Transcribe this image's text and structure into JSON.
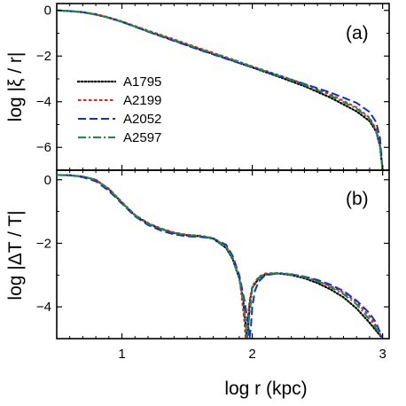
{
  "chart_data": [
    {
      "type": "line",
      "panel_label": "(a)",
      "ylabel": "log |ξ / r|",
      "xlim": [
        0.5,
        3.05
      ],
      "ylim": [
        -7,
        0.3
      ],
      "yticks": [
        0,
        -2,
        -4,
        -6
      ],
      "legend_position": "left-center",
      "series": [
        {
          "name": "A1795",
          "color": "#000000",
          "style": "dotted",
          "x": [
            0.5,
            0.6,
            0.7,
            0.8,
            0.9,
            1.0,
            1.2,
            1.4,
            1.6,
            1.8,
            2.0,
            2.2,
            2.4,
            2.6,
            2.8,
            2.9,
            2.95,
            2.98,
            3.0
          ],
          "y": [
            0,
            -0.03,
            -0.08,
            -0.18,
            -0.32,
            -0.5,
            -0.92,
            -1.32,
            -1.72,
            -2.1,
            -2.5,
            -2.9,
            -3.32,
            -3.82,
            -4.42,
            -4.85,
            -5.3,
            -5.95,
            -7.0
          ]
        },
        {
          "name": "A2199",
          "color": "#e02020",
          "style": "dashed-fine",
          "x": [
            0.5,
            0.6,
            0.7,
            0.8,
            0.9,
            1.0,
            1.2,
            1.4,
            1.6,
            1.8,
            2.0,
            2.2,
            2.4,
            2.6,
            2.8,
            2.9,
            2.95,
            2.98,
            3.0
          ],
          "y": [
            0,
            -0.03,
            -0.07,
            -0.16,
            -0.3,
            -0.48,
            -0.88,
            -1.27,
            -1.67,
            -2.05,
            -2.45,
            -2.83,
            -3.22,
            -3.68,
            -4.25,
            -4.7,
            -5.2,
            -5.9,
            -7.0
          ]
        },
        {
          "name": "A2052",
          "color": "#1030d0",
          "style": "dashed",
          "x": [
            0.5,
            0.6,
            0.7,
            0.8,
            0.9,
            1.0,
            1.2,
            1.4,
            1.6,
            1.8,
            2.0,
            2.2,
            2.4,
            2.6,
            2.8,
            2.9,
            2.95,
            2.98,
            3.0
          ],
          "y": [
            0,
            -0.03,
            -0.08,
            -0.18,
            -0.32,
            -0.5,
            -0.93,
            -1.34,
            -1.74,
            -2.12,
            -2.5,
            -2.86,
            -3.22,
            -3.6,
            -4.05,
            -4.45,
            -4.9,
            -5.6,
            -7.0
          ]
        },
        {
          "name": "A2597",
          "color": "#1a8a4a",
          "style": "dashdot",
          "x": [
            0.5,
            0.6,
            0.7,
            0.8,
            0.9,
            1.0,
            1.2,
            1.4,
            1.6,
            1.8,
            2.0,
            2.2,
            2.4,
            2.6,
            2.8,
            2.9,
            2.95,
            2.98,
            3.0
          ],
          "y": [
            0,
            -0.03,
            -0.08,
            -0.18,
            -0.32,
            -0.5,
            -0.91,
            -1.3,
            -1.7,
            -2.07,
            -2.47,
            -2.86,
            -3.26,
            -3.73,
            -4.3,
            -4.75,
            -5.25,
            -5.95,
            -7.0
          ]
        }
      ]
    },
    {
      "type": "line",
      "panel_label": "(b)",
      "ylabel": "log |ΔT / T|",
      "xlabel": "log r (kpc)",
      "xlim": [
        0.5,
        3.05
      ],
      "ylim": [
        -5,
        0.3
      ],
      "xticks": [
        1,
        2,
        3
      ],
      "yticks": [
        0,
        -2,
        -4
      ],
      "series": [
        {
          "name": "A1795",
          "color": "#000000",
          "style": "dotted",
          "x": [
            0.5,
            0.6,
            0.7,
            0.8,
            0.9,
            1.0,
            1.1,
            1.2,
            1.3,
            1.4,
            1.5,
            1.6,
            1.7,
            1.8,
            1.85,
            1.9,
            1.93,
            1.95,
            1.96,
            1.97,
            1.98,
            2.0,
            2.05,
            2.1,
            2.2,
            2.3,
            2.4,
            2.5,
            2.6,
            2.7,
            2.8,
            2.9,
            2.95,
            3.0
          ],
          "y": [
            0.15,
            0.14,
            0.1,
            0.0,
            -0.3,
            -0.72,
            -1.12,
            -1.38,
            -1.55,
            -1.68,
            -1.75,
            -1.78,
            -1.85,
            -2.15,
            -2.5,
            -3.1,
            -3.8,
            -4.6,
            -5.0,
            -4.6,
            -3.9,
            -3.4,
            -3.1,
            -2.98,
            -2.95,
            -3.0,
            -3.1,
            -3.25,
            -3.45,
            -3.7,
            -4.05,
            -4.5,
            -4.75,
            -5.0
          ]
        },
        {
          "name": "A2199",
          "color": "#e02020",
          "style": "dashed-fine",
          "x": [
            0.5,
            0.6,
            0.7,
            0.8,
            0.9,
            1.0,
            1.1,
            1.2,
            1.3,
            1.4,
            1.5,
            1.6,
            1.7,
            1.8,
            1.85,
            1.9,
            1.92,
            1.94,
            1.95,
            1.96,
            1.98,
            2.0,
            2.05,
            2.1,
            2.2,
            2.3,
            2.4,
            2.5,
            2.6,
            2.7,
            2.8,
            2.9,
            2.95,
            3.0
          ],
          "y": [
            0.15,
            0.14,
            0.1,
            0.0,
            -0.28,
            -0.7,
            -1.1,
            -1.36,
            -1.53,
            -1.66,
            -1.73,
            -1.76,
            -1.83,
            -2.1,
            -2.45,
            -3.05,
            -3.7,
            -4.5,
            -5.0,
            -4.5,
            -3.8,
            -3.35,
            -3.05,
            -2.95,
            -2.93,
            -2.97,
            -3.05,
            -3.18,
            -3.35,
            -3.55,
            -3.85,
            -4.3,
            -4.6,
            -5.0
          ]
        },
        {
          "name": "A2052",
          "color": "#1030d0",
          "style": "dashed",
          "x": [
            0.5,
            0.6,
            0.7,
            0.8,
            0.9,
            1.0,
            1.1,
            1.2,
            1.3,
            1.4,
            1.5,
            1.6,
            1.7,
            1.8,
            1.85,
            1.9,
            1.94,
            1.97,
            1.98,
            1.99,
            2.0,
            2.02,
            2.05,
            2.1,
            2.2,
            2.3,
            2.4,
            2.5,
            2.6,
            2.7,
            2.8,
            2.9,
            2.95,
            3.0
          ],
          "y": [
            0.15,
            0.14,
            0.08,
            -0.05,
            -0.35,
            -0.75,
            -1.15,
            -1.42,
            -1.6,
            -1.72,
            -1.78,
            -1.8,
            -1.85,
            -2.05,
            -2.4,
            -3.0,
            -3.8,
            -4.6,
            -5.0,
            -4.6,
            -4.0,
            -3.5,
            -3.2,
            -3.0,
            -2.95,
            -2.98,
            -3.05,
            -3.15,
            -3.3,
            -3.5,
            -3.8,
            -4.2,
            -4.5,
            -5.0
          ]
        },
        {
          "name": "A2597",
          "color": "#1a8a4a",
          "style": "dashdot",
          "x": [
            0.5,
            0.6,
            0.7,
            0.8,
            0.9,
            1.0,
            1.1,
            1.2,
            1.3,
            1.4,
            1.5,
            1.6,
            1.7,
            1.8,
            1.85,
            1.9,
            1.93,
            1.95,
            1.96,
            1.97,
            1.99,
            2.0,
            2.05,
            2.1,
            2.2,
            2.3,
            2.4,
            2.5,
            2.6,
            2.7,
            2.8,
            2.9,
            2.95,
            3.0
          ],
          "y": [
            0.15,
            0.14,
            0.1,
            0.0,
            -0.3,
            -0.72,
            -1.12,
            -1.38,
            -1.55,
            -1.67,
            -1.74,
            -1.77,
            -1.84,
            -2.12,
            -2.48,
            -3.08,
            -3.75,
            -4.55,
            -5.0,
            -4.55,
            -3.85,
            -3.38,
            -3.08,
            -2.96,
            -2.94,
            -2.98,
            -3.07,
            -3.2,
            -3.38,
            -3.6,
            -3.92,
            -4.4,
            -4.68,
            -5.0
          ]
        }
      ]
    }
  ]
}
